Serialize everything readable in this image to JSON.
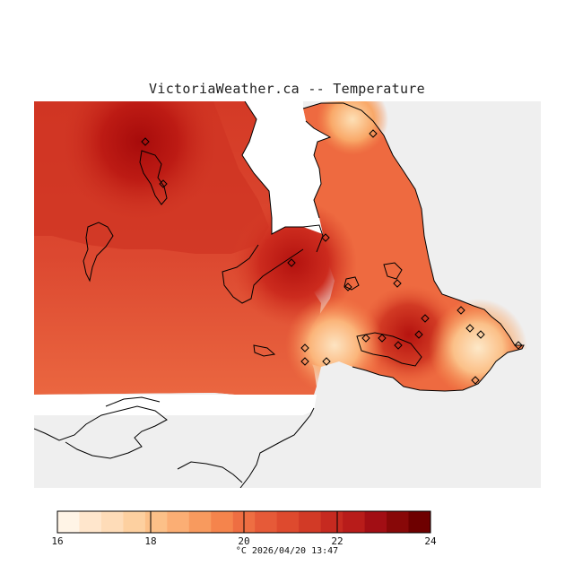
{
  "title": "VictoriaWeather.ca -- Temperature",
  "colorbar": {
    "min": 16,
    "max": 24,
    "labels": [
      "16",
      "18",
      "20",
      "22",
      "24"
    ],
    "colors": [
      "#fff4e6",
      "#ffe6cc",
      "#fedcb8",
      "#fdd0a0",
      "#fcc088",
      "#fbae74",
      "#f89a5e",
      "#f5844c",
      "#ee6e42",
      "#e65a38",
      "#de4a2e",
      "#d23a26",
      "#c62a20",
      "#b81c1a",
      "#a20e14",
      "#880808",
      "#6e0000"
    ]
  },
  "units_timestamp": "°C  2026/04/20 13:47",
  "palette": {
    "land_gray": "#efefef",
    "low_temp": "#fbe1bf",
    "high_temp": "#b10a0a"
  }
}
